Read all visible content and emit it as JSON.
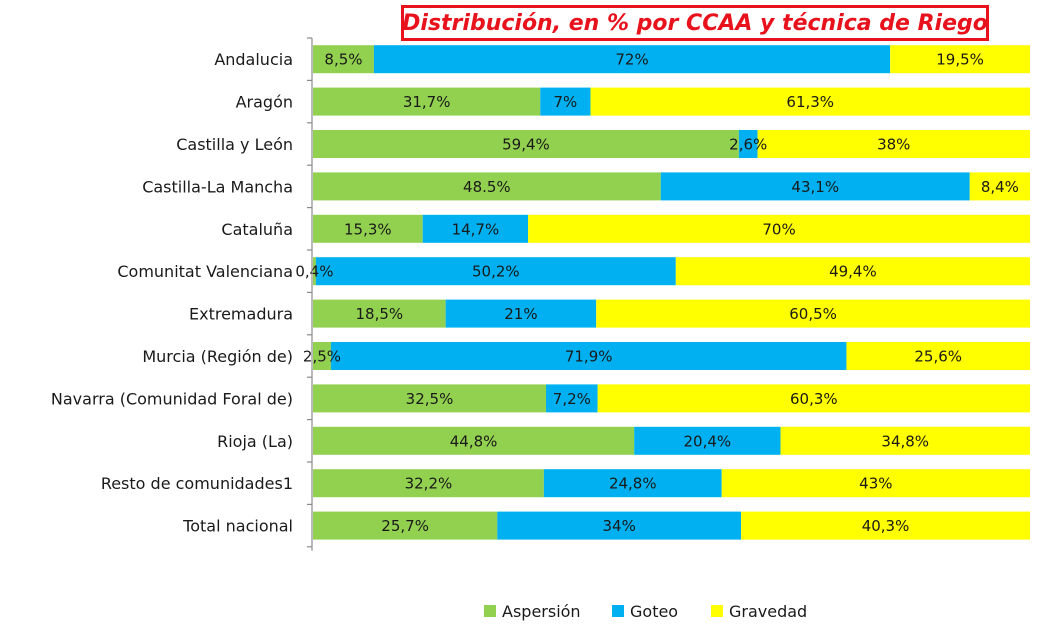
{
  "chart_data": {
    "type": "bar",
    "orientation": "horizontal",
    "stacked": true,
    "percent_stacked": true,
    "title": "Distribución, en % por CCAA y técnica de Riego",
    "xlabel": "",
    "ylabel": "",
    "xlim": [
      0,
      100
    ],
    "grid": false,
    "legend_position": "bottom",
    "categories": [
      "Andalucia",
      "Aragón",
      "Castilla y León",
      "Castilla-La Mancha",
      "Cataluña",
      "Comunitat Valenciana",
      "Extremadura",
      "Murcia (Región de)",
      "Navarra (Comunidad Foral de)",
      "Rioja (La)",
      "Resto de comunidades1",
      "Total nacional"
    ],
    "series": [
      {
        "name": "Aspersión",
        "color": "#92d050",
        "values": [
          8.5,
          31.7,
          59.4,
          48.5,
          15.3,
          0.4,
          18.5,
          2.5,
          32.5,
          44.8,
          32.2,
          25.7
        ],
        "labels": [
          "8,5%",
          "31,7%",
          "59,4%",
          "48.5%",
          "15,3%",
          "0,4%",
          "18,5%",
          "2,5%",
          "32,5%",
          "44,8%",
          "32,2%",
          "25,7%"
        ]
      },
      {
        "name": "Goteo",
        "color": "#00b0f0",
        "values": [
          72,
          7,
          2.6,
          43.1,
          14.7,
          50.2,
          21,
          71.9,
          7.2,
          20.4,
          24.8,
          34
        ],
        "labels": [
          "72%",
          "7%",
          "2,6%",
          "43,1%",
          "14,7%",
          "50,2%",
          "21%",
          "71,9%",
          "7,2%",
          "20,4%",
          "24,8%",
          "34%"
        ]
      },
      {
        "name": "Gravedad",
        "color": "#ffff00",
        "values": [
          19.5,
          61.3,
          38,
          8.4,
          70,
          49.4,
          60.5,
          25.6,
          60.3,
          34.8,
          43,
          40.3
        ],
        "labels": [
          "19,5%",
          "61,3%",
          "38%",
          "8,4%",
          "70%",
          "49,4%",
          "60,5%",
          "25,6%",
          "60,3%",
          "34,8%",
          "43%",
          "40,3%"
        ]
      }
    ]
  }
}
